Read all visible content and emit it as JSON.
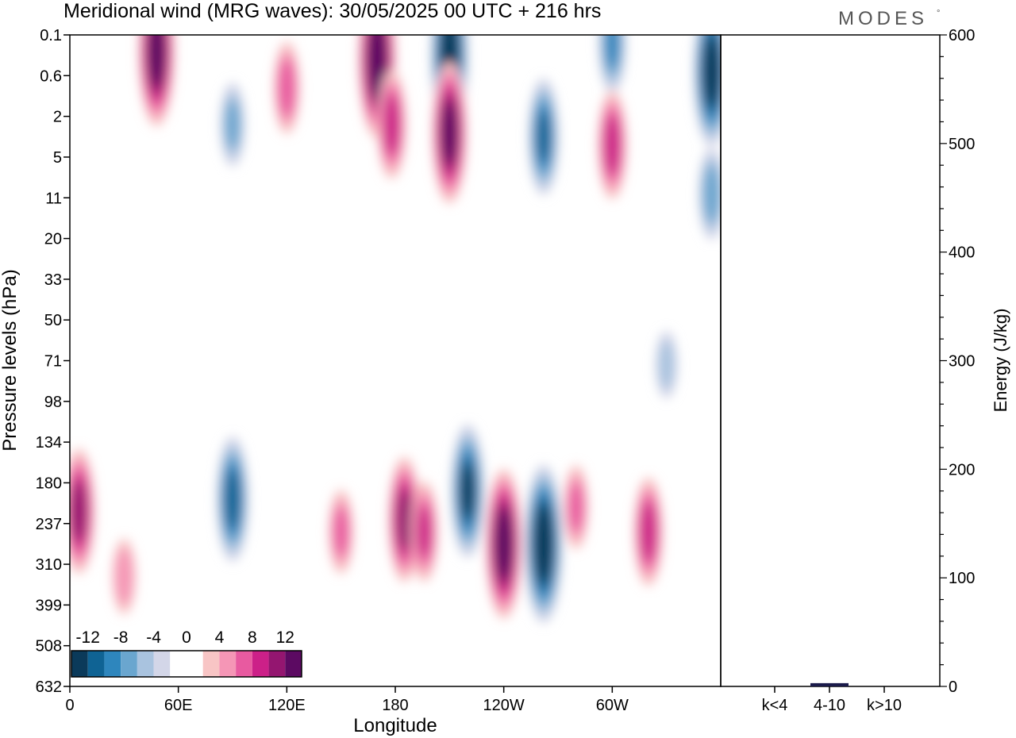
{
  "title": "Meridional wind (MRG waves):  30/05/2025  00 UTC  + 216 hrs",
  "brand": "MODES",
  "brand_mark": "°",
  "chart_data": [
    {
      "type": "heatmap",
      "title": "Meridional wind (MRG waves):  30/05/2025  00 UTC  + 216 hrs",
      "xlabel": "Longitude",
      "ylabel": "Pressure levels (hPa)",
      "x_ticks": [
        "0",
        "60E",
        "120E",
        "180",
        "120W",
        "60W"
      ],
      "x_tick_degrees": [
        0,
        60,
        120,
        180,
        240,
        300
      ],
      "xlim": [
        0,
        360
      ],
      "y_ticks": [
        "0.1",
        "0.6",
        "2",
        "5",
        "11",
        "20",
        "33",
        "50",
        "71",
        "98",
        "134",
        "180",
        "237",
        "310",
        "399",
        "508",
        "632"
      ],
      "y_scale": "model levels (top to bottom)",
      "colorbar": {
        "labels": [
          "-12",
          "-8",
          "-4",
          "0",
          "4",
          "8",
          "12"
        ],
        "colors": [
          "#0b3a5a",
          "#0f6394",
          "#2e86bd",
          "#6aa6cf",
          "#a9c3df",
          "#d3d6e8",
          "#ffffff",
          "#ffffff",
          "#f8c5c5",
          "#f596b6",
          "#e85aa0",
          "#cc2088",
          "#941670",
          "#5c0a62"
        ]
      },
      "features": [
        {
          "lon": 5,
          "level": 11.7,
          "value": 11
        },
        {
          "lon": 30,
          "level": 13.3,
          "value": 5
        },
        {
          "lon": 48,
          "level": 0.4,
          "value": 14
        },
        {
          "lon": 90,
          "level": 11.4,
          "value": -11
        },
        {
          "lon": 90,
          "level": 2.2,
          "value": -6
        },
        {
          "lon": 120,
          "level": 1.3,
          "value": 7
        },
        {
          "lon": 150,
          "level": 12.2,
          "value": 6
        },
        {
          "lon": 170,
          "level": 0.6,
          "value": 15
        },
        {
          "lon": 178,
          "level": 2.2,
          "value": 9
        },
        {
          "lon": 185,
          "level": 11.9,
          "value": 11
        },
        {
          "lon": 196,
          "level": 12.2,
          "value": 8
        },
        {
          "lon": 210,
          "level": 0.5,
          "value": -15
        },
        {
          "lon": 210,
          "level": 2.4,
          "value": 13
        },
        {
          "lon": 220,
          "level": 11.2,
          "value": -12
        },
        {
          "lon": 240,
          "level": 12.5,
          "value": 14
        },
        {
          "lon": 262,
          "level": 12.5,
          "value": -15
        },
        {
          "lon": 262,
          "level": 2.5,
          "value": -10
        },
        {
          "lon": 280,
          "level": 11.6,
          "value": 6
        },
        {
          "lon": 300,
          "level": 0.2,
          "value": -8
        },
        {
          "lon": 300,
          "level": 2.7,
          "value": 9
        },
        {
          "lon": 320,
          "level": 12.2,
          "value": 9
        },
        {
          "lon": 330,
          "level": 8.1,
          "value": -4
        },
        {
          "lon": 355,
          "level": 0.9,
          "value": -14
        },
        {
          "lon": 355,
          "level": 3.9,
          "value": -7
        }
      ]
    },
    {
      "type": "bar",
      "categories": [
        "k<4",
        "4-10",
        "k>10"
      ],
      "values": [
        0,
        3,
        0
      ],
      "ylabel": "Energy (J/kg)",
      "ylim": [
        0,
        600
      ],
      "y_ticks": [
        "0",
        "100",
        "200",
        "300",
        "400",
        "500",
        "600"
      ],
      "bar_color": "#1a1a4a"
    }
  ]
}
